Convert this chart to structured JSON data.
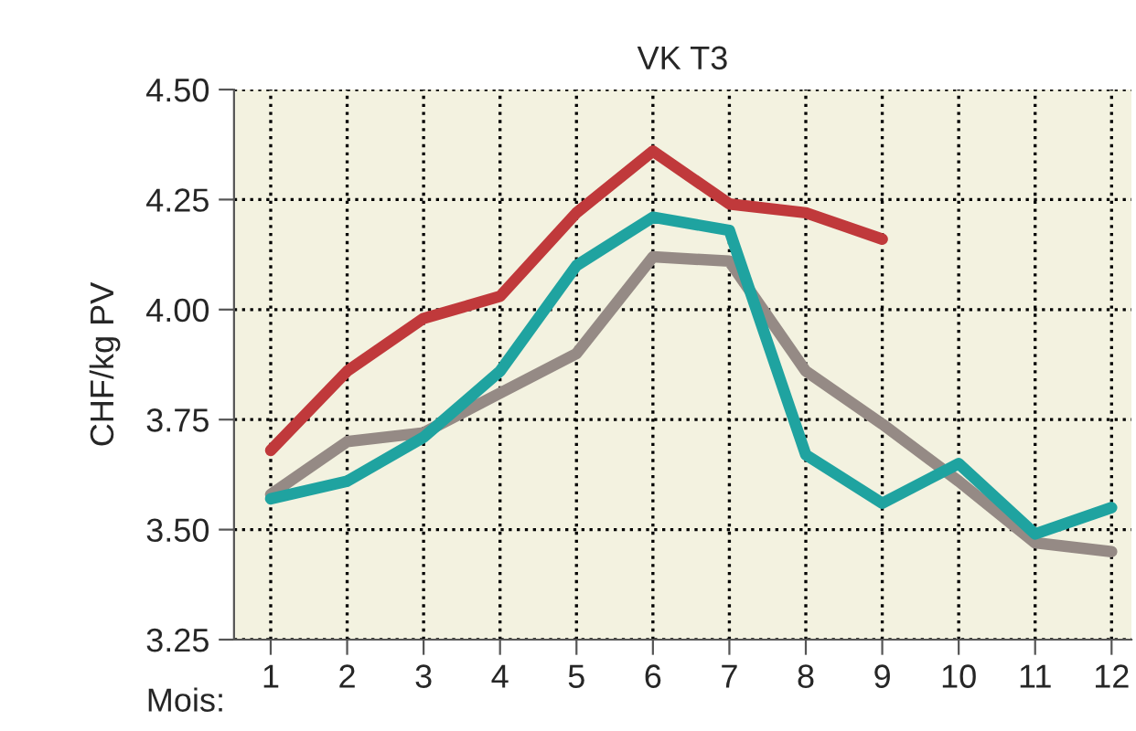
{
  "chart_data": {
    "type": "line",
    "title": "VK T3",
    "xlabel": "Mois:",
    "ylabel": "CHF/kg PV",
    "categories": [
      "1",
      "2",
      "3",
      "4",
      "5",
      "6",
      "7",
      "8",
      "9",
      "10",
      "11",
      "12"
    ],
    "series": [
      {
        "color": "#c0393b",
        "values": [
          3.68,
          3.86,
          3.98,
          4.03,
          4.22,
          4.36,
          4.24,
          4.22,
          4.16,
          null,
          null,
          null
        ]
      },
      {
        "color": "#958a85",
        "values": [
          3.58,
          3.7,
          3.72,
          3.81,
          3.9,
          4.12,
          4.11,
          3.86,
          3.74,
          3.61,
          3.47,
          3.45
        ]
      },
      {
        "color": "#1fa3a0",
        "values": [
          3.57,
          3.61,
          3.71,
          3.86,
          4.1,
          4.21,
          4.18,
          3.67,
          3.56,
          3.65,
          3.49,
          3.55
        ]
      }
    ],
    "ylim": [
      3.25,
      4.5
    ],
    "yticks": [
      {
        "value": 3.25,
        "label": "3.25"
      },
      {
        "value": 3.5,
        "label": "3.50"
      },
      {
        "value": 3.75,
        "label": "3.75"
      },
      {
        "value": 4.0,
        "label": "4.00"
      },
      {
        "value": 4.25,
        "label": "4.25"
      },
      {
        "value": 4.5,
        "label": "4.50"
      }
    ],
    "grid": true,
    "line_style": "solid",
    "marker": "none"
  }
}
